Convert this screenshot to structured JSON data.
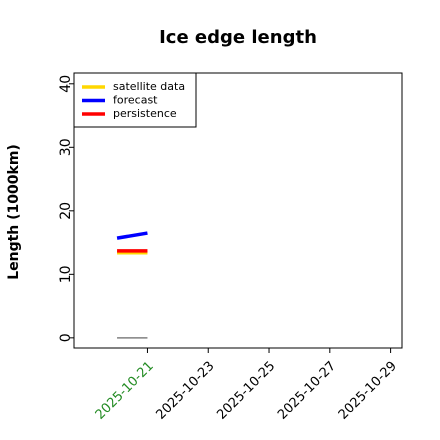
{
  "chart_data": {
    "type": "line",
    "title": "Ice edge length",
    "y_label": "Length (1000km)",
    "x": [
      "2025-10-20",
      "2025-10-21"
    ],
    "series": [
      {
        "name": "satellite data",
        "color": "#ffd700",
        "values": [
          13.4,
          13.4
        ]
      },
      {
        "name": "forecast",
        "color": "#0000ff",
        "values": [
          15.7,
          16.5
        ]
      },
      {
        "name": "persistence",
        "color": "#ff0000",
        "values": [
          13.7,
          13.7
        ]
      }
    ],
    "reference_line": {
      "color": "#808080",
      "values": [
        0,
        0
      ]
    },
    "xlim": [
      "2025-10-18T14:00Z",
      "2025-10-29T09:00Z"
    ],
    "xticks": [
      "2025-10-21",
      "2025-10-23",
      "2025-10-25",
      "2025-10-27",
      "2025-10-29"
    ],
    "xtick_colors": [
      "#228b22",
      "#000000",
      "#000000",
      "#000000",
      "#000000"
    ],
    "ylim": [
      -1.6,
      41.7
    ],
    "yticks": [
      0,
      10,
      20,
      30,
      40
    ],
    "legend": "upper left",
    "grid": false
  }
}
